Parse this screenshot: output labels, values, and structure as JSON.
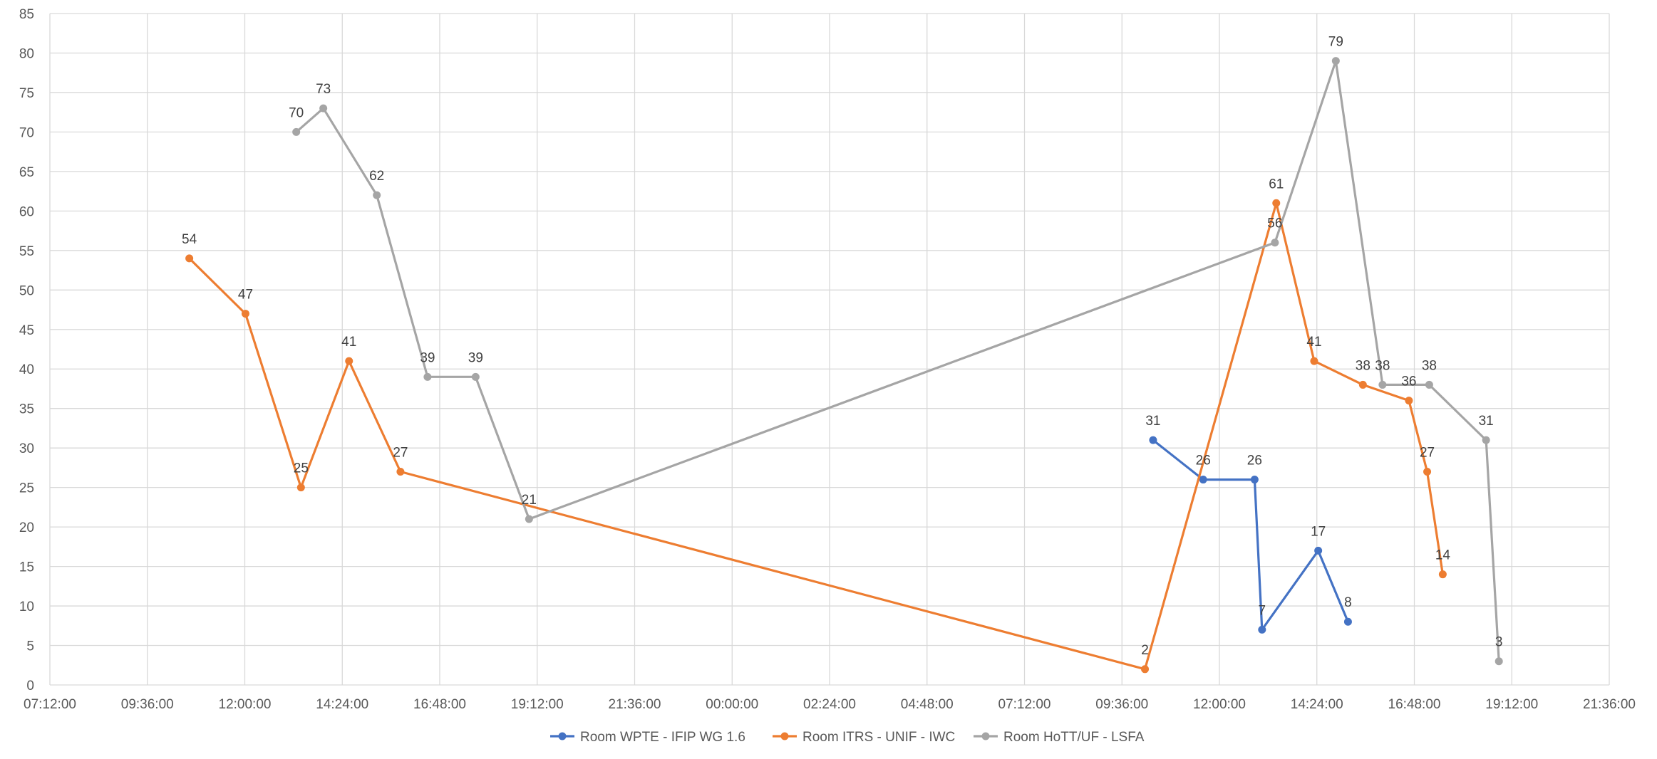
{
  "chart_data": {
    "type": "line",
    "title": "",
    "xlabel": "",
    "ylabel": "",
    "ylim": [
      0,
      85
    ],
    "y_ticks": [
      "0",
      "5",
      "10",
      "15",
      "20",
      "25",
      "30",
      "35",
      "40",
      "45",
      "50",
      "55",
      "60",
      "65",
      "70",
      "75",
      "80",
      "85"
    ],
    "x_ticks": [
      "07:12:00",
      "09:36:00",
      "12:00:00",
      "14:24:00",
      "16:48:00",
      "19:12:00",
      "21:36:00",
      "00:00:00",
      "02:24:00",
      "04:48:00",
      "07:12:00",
      "09:36:00",
      "12:00:00",
      "14:24:00",
      "16:48:00",
      "19:12:00",
      "21:36:00"
    ],
    "xlim": [
      "Day 1 07:12",
      "Day 2 21:36"
    ],
    "grid": true,
    "legend_position": "bottom",
    "series": [
      {
        "name": "Room WPTE - IFIP WG 1.6",
        "color": "#4472C4",
        "points": [
          {
            "t": "Day 2 10:22",
            "y": 31
          },
          {
            "t": "Day 2 11:36",
            "y": 26
          },
          {
            "t": "Day 2 12:52",
            "y": 26
          },
          {
            "t": "Day 2 13:03",
            "y": 7
          },
          {
            "t": "Day 2 14:26",
            "y": 17
          },
          {
            "t": "Day 2 15:10",
            "y": 8
          }
        ]
      },
      {
        "name": "Room ITRS - UNIF - IWC",
        "color": "#ED7D31",
        "points": [
          {
            "t": "Day 1 10:38",
            "y": 54
          },
          {
            "t": "Day 1 12:01",
            "y": 47
          },
          {
            "t": "Day 1 13:23",
            "y": 25
          },
          {
            "t": "Day 1 14:34",
            "y": 41
          },
          {
            "t": "Day 1 15:50",
            "y": 27
          },
          {
            "t": "Day 2 10:10",
            "y": 2
          },
          {
            "t": "Day 2 13:24",
            "y": 61
          },
          {
            "t": "Day 2 14:20",
            "y": 41
          },
          {
            "t": "Day 2 15:32",
            "y": 38
          },
          {
            "t": "Day 2 16:40",
            "y": 36
          },
          {
            "t": "Day 2 17:07",
            "y": 27
          },
          {
            "t": "Day 2 17:30",
            "y": 14
          }
        ]
      },
      {
        "name": "Room HoTT/UF - LSFA",
        "color": "#A5A5A5",
        "points": [
          {
            "t": "Day 1 13:16",
            "y": 70
          },
          {
            "t": "Day 1 13:56",
            "y": 73
          },
          {
            "t": "Day 1 15:15",
            "y": 62
          },
          {
            "t": "Day 1 16:30",
            "y": 39
          },
          {
            "t": "Day 1 17:41",
            "y": 39
          },
          {
            "t": "Day 1 19:00",
            "y": 21
          },
          {
            "t": "Day 2 13:22",
            "y": 56
          },
          {
            "t": "Day 2 14:52",
            "y": 79
          },
          {
            "t": "Day 2 16:01",
            "y": 38
          },
          {
            "t": "Day 2 17:10",
            "y": 38
          },
          {
            "t": "Day 2 18:34",
            "y": 31
          },
          {
            "t": "Day 2 18:53",
            "y": 3
          }
        ]
      }
    ]
  }
}
